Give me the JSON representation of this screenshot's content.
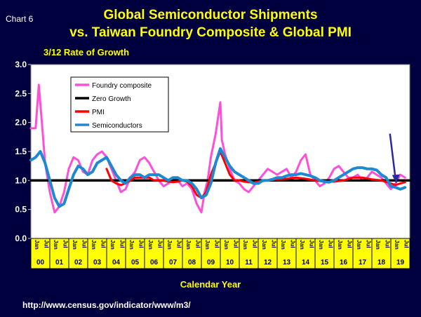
{
  "chart_label": "Chart 6",
  "chart_data": {
    "type": "line",
    "title": "Global Semiconductor Shipments",
    "subtitle": "vs. Taiwan Foundry Composite & Global PMI",
    "ylabel": "3/12 Rate of Growth",
    "xlabel": "Calendar Year",
    "ylim": [
      0,
      3.0
    ],
    "yticks": [
      "0.0",
      "0.5",
      "1.0",
      "1.5",
      "2.0",
      "2.5",
      "3.0"
    ],
    "xlim": [
      2000,
      2020
    ],
    "month_labels": [
      "Jan",
      "Jul"
    ],
    "year_labels": [
      "00",
      "01",
      "02",
      "03",
      "04",
      "05",
      "06",
      "07",
      "08",
      "09",
      "10",
      "11",
      "12",
      "13",
      "14",
      "15",
      "16",
      "17",
      "18",
      "19"
    ],
    "legend_position": "top-left",
    "grid": false,
    "series": [
      {
        "name": "Foundry composite",
        "color": "#ff4fd8",
        "x": [
          2000.0,
          2000.25,
          2000.42,
          2000.58,
          2000.75,
          2001.0,
          2001.25,
          2001.5,
          2001.75,
          2002.0,
          2002.25,
          2002.5,
          2002.75,
          2003.0,
          2003.25,
          2003.5,
          2003.75,
          2004.0,
          2004.25,
          2004.5,
          2004.75,
          2005.0,
          2005.25,
          2005.5,
          2005.75,
          2006.0,
          2006.25,
          2006.5,
          2006.75,
          2007.0,
          2007.25,
          2007.5,
          2007.75,
          2008.0,
          2008.25,
          2008.5,
          2008.75,
          2009.0,
          2009.17,
          2009.33,
          2009.5,
          2009.75,
          2010.0,
          2010.08,
          2010.25,
          2010.5,
          2010.75,
          2011.0,
          2011.25,
          2011.5,
          2011.75,
          2012.0,
          2012.25,
          2012.5,
          2012.75,
          2013.0,
          2013.25,
          2013.5,
          2013.75,
          2014.0,
          2014.25,
          2014.5,
          2014.75,
          2015.0,
          2015.25,
          2015.5,
          2015.75,
          2016.0,
          2016.25,
          2016.5,
          2016.75,
          2017.0,
          2017.25,
          2017.5,
          2017.75,
          2018.0,
          2018.25,
          2018.5,
          2018.75,
          2019.0,
          2019.25,
          2019.5,
          2019.75
        ],
        "y": [
          1.9,
          1.9,
          2.65,
          2.0,
          1.3,
          0.8,
          0.45,
          0.55,
          0.8,
          1.2,
          1.4,
          1.35,
          1.15,
          1.1,
          1.35,
          1.45,
          1.5,
          1.4,
          1.2,
          1.0,
          0.8,
          0.85,
          1.05,
          1.15,
          1.35,
          1.4,
          1.3,
          1.15,
          1.0,
          0.9,
          0.95,
          1.05,
          1.0,
          0.9,
          0.95,
          0.85,
          0.6,
          0.45,
          0.8,
          1.0,
          1.4,
          1.8,
          2.35,
          1.7,
          1.45,
          1.2,
          1.0,
          0.95,
          0.85,
          0.8,
          0.9,
          1.0,
          1.1,
          1.2,
          1.15,
          1.1,
          1.15,
          1.2,
          1.05,
          1.15,
          1.35,
          1.45,
          1.1,
          1.0,
          0.9,
          0.95,
          1.05,
          1.2,
          1.25,
          1.15,
          1.05,
          1.05,
          1.1,
          1.0,
          1.05,
          1.15,
          1.1,
          1.05,
          0.95,
          0.85,
          0.95,
          1.1,
          1.05
        ]
      },
      {
        "name": "Zero Growth",
        "color": "#000000",
        "x": [
          2000,
          2020
        ],
        "y": [
          1.0,
          1.0
        ]
      },
      {
        "name": "PMI",
        "color": "#ff0000",
        "x": [
          2004.0,
          2004.25,
          2004.5,
          2004.75,
          2005.0,
          2005.25,
          2005.5,
          2005.75,
          2006.0,
          2006.25,
          2006.5,
          2006.75,
          2007.0,
          2007.25,
          2007.5,
          2007.75,
          2008.0,
          2008.25,
          2008.5,
          2008.75,
          2009.0,
          2009.25,
          2009.5,
          2009.75,
          2010.0,
          2010.25,
          2010.5,
          2010.75,
          2011.0,
          2011.25,
          2011.5,
          2011.75,
          2012.0,
          2012.5,
          2013.0,
          2013.5,
          2014.0,
          2014.5,
          2015.0,
          2015.5,
          2016.0,
          2016.5,
          2017.0,
          2017.5,
          2018.0,
          2018.5,
          2019.0,
          2019.25,
          2019.5,
          2019.75
        ],
        "y": [
          1.2,
          1.0,
          0.95,
          0.92,
          0.95,
          1.0,
          1.05,
          1.05,
          1.05,
          1.05,
          1.0,
          1.0,
          1.0,
          0.98,
          0.97,
          0.98,
          1.0,
          0.98,
          0.9,
          0.75,
          0.7,
          0.8,
          1.1,
          1.3,
          1.5,
          1.3,
          1.1,
          1.0,
          1.0,
          0.98,
          0.97,
          0.96,
          0.98,
          1.0,
          1.02,
          1.03,
          1.05,
          1.03,
          1.0,
          0.98,
          0.98,
          1.0,
          1.05,
          1.05,
          1.02,
          1.0,
          0.95,
          0.92,
          0.95,
          0.97
        ]
      },
      {
        "name": "Semiconductors",
        "color": "#1e88d0",
        "x": [
          2000.0,
          2000.25,
          2000.5,
          2000.75,
          2001.0,
          2001.25,
          2001.5,
          2001.75,
          2002.0,
          2002.25,
          2002.5,
          2002.75,
          2003.0,
          2003.25,
          2003.5,
          2003.75,
          2004.0,
          2004.25,
          2004.5,
          2004.75,
          2005.0,
          2005.25,
          2005.5,
          2005.75,
          2006.0,
          2006.25,
          2006.5,
          2006.75,
          2007.0,
          2007.25,
          2007.5,
          2007.75,
          2008.0,
          2008.25,
          2008.5,
          2008.75,
          2009.0,
          2009.25,
          2009.5,
          2009.75,
          2010.0,
          2010.25,
          2010.5,
          2010.75,
          2011.0,
          2011.25,
          2011.5,
          2011.75,
          2012.0,
          2012.25,
          2012.5,
          2012.75,
          2013.0,
          2013.25,
          2013.5,
          2013.75,
          2014.0,
          2014.25,
          2014.5,
          2014.75,
          2015.0,
          2015.25,
          2015.5,
          2015.75,
          2016.0,
          2016.25,
          2016.5,
          2016.75,
          2017.0,
          2017.25,
          2017.5,
          2017.75,
          2018.0,
          2018.25,
          2018.5,
          2018.75,
          2019.0,
          2019.25,
          2019.5,
          2019.75
        ],
        "y": [
          1.35,
          1.4,
          1.5,
          1.3,
          1.0,
          0.7,
          0.55,
          0.6,
          0.85,
          1.1,
          1.25,
          1.2,
          1.1,
          1.15,
          1.3,
          1.35,
          1.4,
          1.25,
          1.1,
          1.0,
          0.95,
          1.05,
          1.1,
          1.1,
          1.05,
          1.1,
          1.1,
          1.1,
          1.05,
          1.0,
          1.05,
          1.05,
          1.0,
          1.0,
          0.95,
          0.85,
          0.7,
          0.75,
          0.95,
          1.3,
          1.55,
          1.4,
          1.25,
          1.15,
          1.1,
          1.05,
          1.0,
          0.95,
          0.95,
          1.0,
          1.0,
          1.02,
          1.05,
          1.05,
          1.08,
          1.1,
          1.1,
          1.12,
          1.1,
          1.08,
          1.05,
          1.0,
          0.98,
          0.97,
          1.0,
          1.05,
          1.1,
          1.15,
          1.2,
          1.22,
          1.22,
          1.2,
          1.2,
          1.18,
          1.1,
          1.05,
          0.9,
          0.88,
          0.85,
          0.88
        ]
      }
    ],
    "annotation": {
      "type": "arrow",
      "color": "#2a2aa0",
      "x": 2019.25,
      "y": 0.9
    }
  },
  "source_url": "http://www.census.gov/indicator/www/m3/"
}
